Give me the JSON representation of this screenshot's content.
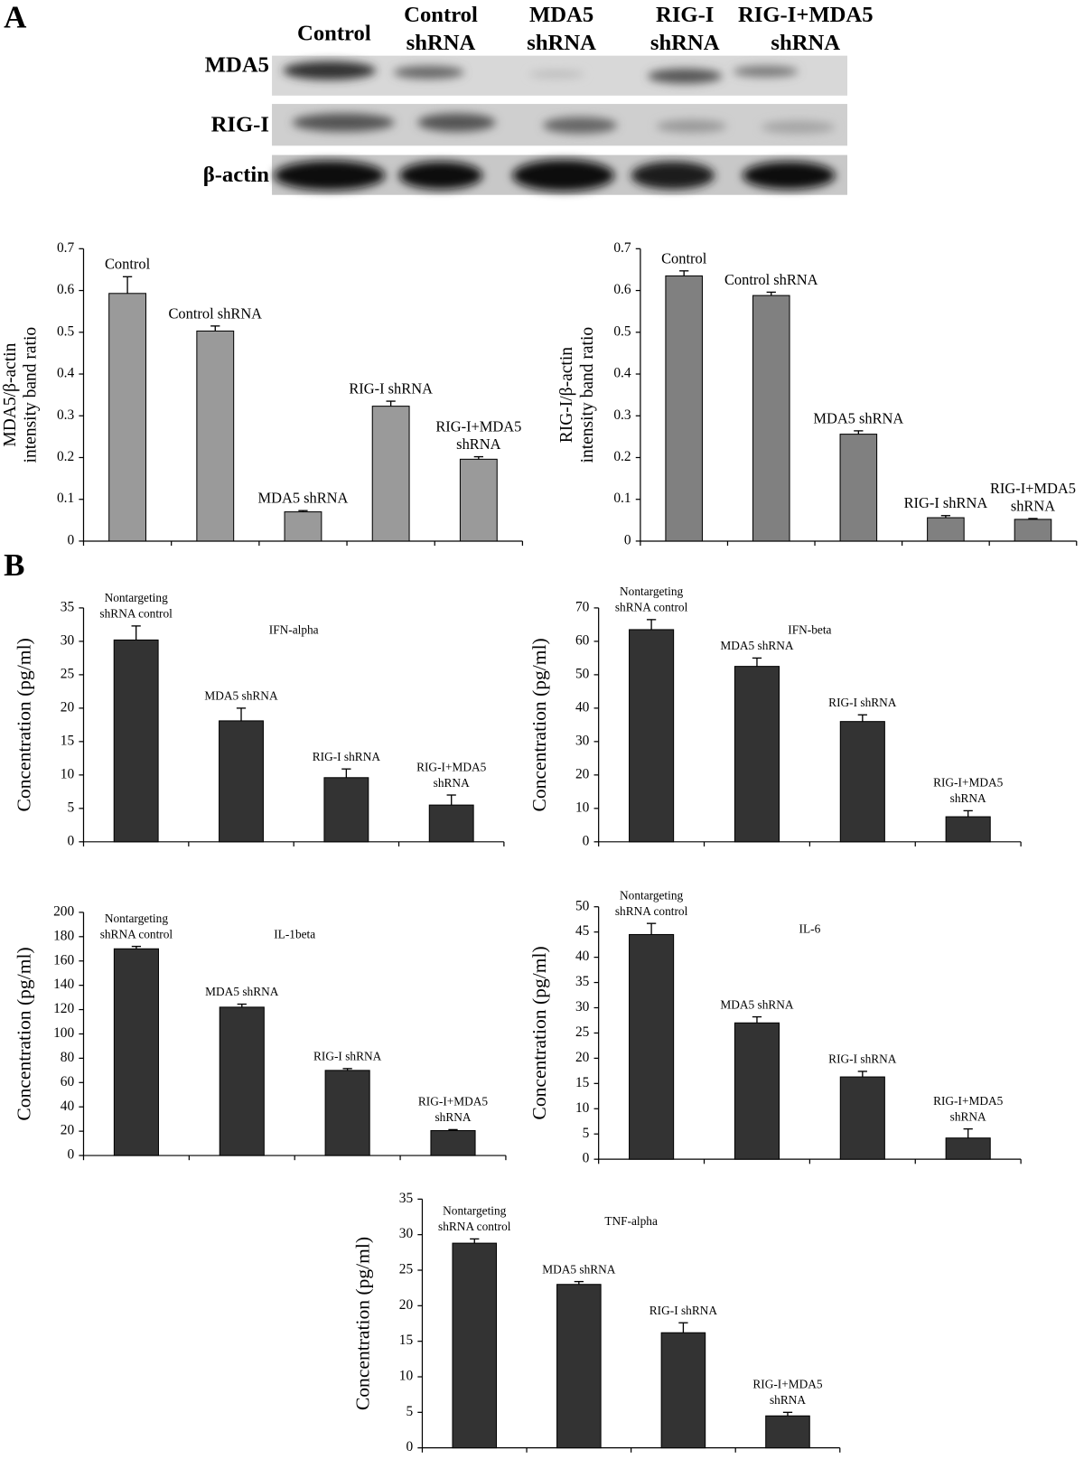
{
  "panel_a": "A",
  "panel_b": "B",
  "blot": {
    "lanes": [
      [
        "Control"
      ],
      [
        "Control",
        "shRNA"
      ],
      [
        "MDA5",
        "shRNA"
      ],
      [
        "RIG-I",
        "shRNA"
      ],
      [
        "RIG-I+MDA5",
        "shRNA"
      ]
    ],
    "rows": [
      "MDA5",
      "RIG-I",
      "β-actin"
    ]
  },
  "chart_data": [
    {
      "type": "bar",
      "ylabel": [
        "MDA5/β-actin",
        "intensity band ratio"
      ],
      "categories": [
        [
          "Control"
        ],
        [
          "Control shRNA"
        ],
        [
          "MDA5 shRNA"
        ],
        [
          "RIG-I shRNA"
        ],
        [
          "RIG-I+MDA5",
          "shRNA"
        ]
      ],
      "values": [
        0.593,
        0.503,
        0.07,
        0.323,
        0.196
      ],
      "errors": [
        0.04,
        0.012,
        0.003,
        0.012,
        0.006
      ],
      "color": "#9a9a9a",
      "ylim": [
        0,
        0.7
      ],
      "yticks": [
        0,
        0.1,
        0.2,
        0.3,
        0.4,
        0.5,
        0.6,
        0.7
      ]
    },
    {
      "type": "bar",
      "ylabel": [
        "RIG-I/β-actin",
        "intensity band ratio"
      ],
      "categories": [
        [
          "Control"
        ],
        [
          "Control shRNA"
        ],
        [
          "MDA5 shRNA"
        ],
        [
          "RIG-I shRNA"
        ],
        [
          "RIG-I+MDA5",
          "shRNA"
        ]
      ],
      "values": [
        0.635,
        0.588,
        0.256,
        0.056,
        0.052
      ],
      "errors": [
        0.012,
        0.008,
        0.008,
        0.005,
        0.002
      ],
      "color": "#808080",
      "ylim": [
        0,
        0.7
      ],
      "yticks": [
        0,
        0.1,
        0.2,
        0.3,
        0.4,
        0.5,
        0.6,
        0.7
      ]
    },
    {
      "type": "bar",
      "title": "IFN-alpha",
      "ylabel": [
        "Concentration (pg/ml)"
      ],
      "categories": [
        [
          "Nontargeting",
          "shRNA control"
        ],
        [
          "MDA5 shRNA"
        ],
        [
          "RIG-I shRNA"
        ],
        [
          "RIG-I+MDA5",
          "shRNA"
        ]
      ],
      "values": [
        30.2,
        18.1,
        9.6,
        5.5
      ],
      "errors": [
        2.1,
        1.9,
        1.3,
        1.5
      ],
      "color": "#333333",
      "ylim": [
        0,
        35
      ],
      "yticks": [
        0,
        5,
        10,
        15,
        20,
        25,
        30,
        35
      ]
    },
    {
      "type": "bar",
      "title": "IFN-beta",
      "ylabel": [
        "Concentration (pg/ml)"
      ],
      "categories": [
        [
          "Nontargeting",
          "shRNA control"
        ],
        [
          "MDA5 shRNA"
        ],
        [
          "RIG-I shRNA"
        ],
        [
          "RIG-I+MDA5",
          "shRNA"
        ]
      ],
      "values": [
        63.5,
        52.5,
        36,
        7.5
      ],
      "errors": [
        3,
        2.5,
        2,
        1.8
      ],
      "color": "#333333",
      "ylim": [
        0,
        70
      ],
      "yticks": [
        0,
        10,
        20,
        30,
        40,
        50,
        60,
        70
      ]
    },
    {
      "type": "bar",
      "title": "IL-1beta",
      "ylabel": [
        "Concentration (pg/ml)"
      ],
      "categories": [
        [
          "Nontargeting",
          "shRNA control"
        ],
        [
          "MDA5 shRNA"
        ],
        [
          "RIG-I shRNA"
        ],
        [
          "RIG-I+MDA5",
          "shRNA"
        ]
      ],
      "values": [
        170,
        122,
        70,
        20.5
      ],
      "errors": [
        2,
        2.5,
        1.5,
        0.8
      ],
      "color": "#333333",
      "ylim": [
        0,
        200
      ],
      "yticks": [
        0,
        20,
        40,
        60,
        80,
        100,
        120,
        140,
        160,
        180,
        200
      ]
    },
    {
      "type": "bar",
      "title": "IL-6",
      "ylabel": [
        "Concentration (pg/ml)"
      ],
      "categories": [
        [
          "Nontargeting",
          "shRNA control"
        ],
        [
          "MDA5 shRNA"
        ],
        [
          "RIG-I shRNA"
        ],
        [
          "RIG-I+MDA5",
          "shRNA"
        ]
      ],
      "values": [
        44.5,
        27,
        16.3,
        4.2
      ],
      "errors": [
        2.2,
        1.2,
        1.1,
        1.8
      ],
      "color": "#333333",
      "ylim": [
        0,
        50
      ],
      "yticks": [
        0,
        5,
        10,
        15,
        20,
        25,
        30,
        35,
        40,
        45,
        50
      ]
    },
    {
      "type": "bar",
      "title": "TNF-alpha",
      "ylabel": [
        "Concentration (pg/ml)"
      ],
      "categories": [
        [
          "Nontargeting",
          "shRNA control"
        ],
        [
          "MDA5 shRNA"
        ],
        [
          "RIG-I shRNA"
        ],
        [
          "RIG-I+MDA5",
          "shRNA"
        ]
      ],
      "values": [
        28.8,
        23,
        16.2,
        4.5
      ],
      "errors": [
        0.6,
        0.4,
        1.4,
        0.5
      ],
      "color": "#333333",
      "ylim": [
        0,
        35
      ],
      "yticks": [
        0,
        5,
        10,
        15,
        20,
        25,
        30,
        35
      ]
    }
  ]
}
